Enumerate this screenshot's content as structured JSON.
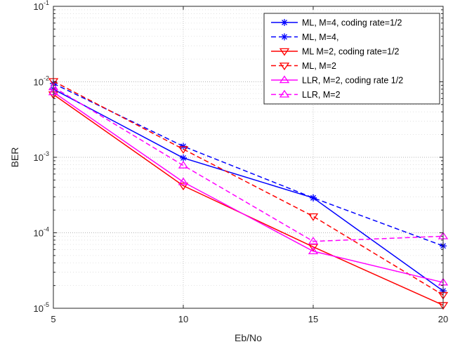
{
  "chart_data": {
    "type": "line",
    "xlabel": "Eb/No",
    "ylabel": "BER",
    "x": [
      5,
      10,
      15,
      20
    ],
    "xlim": [
      5,
      20
    ],
    "ylim": [
      1e-05,
      0.1
    ],
    "yscale": "log",
    "x_tick_labels": [
      "5",
      "10",
      "15",
      "20"
    ],
    "y_tick_labels": [
      {
        "base": "10",
        "exp": "-5"
      },
      {
        "base": "10",
        "exp": "-4"
      },
      {
        "base": "10",
        "exp": "-3"
      },
      {
        "base": "10",
        "exp": "-2"
      },
      {
        "base": "10",
        "exp": "-1"
      }
    ],
    "grid": true,
    "minor_grid": true,
    "legend_position": "top-right",
    "series": [
      {
        "name": "ML, M=4, coding rate=1/2",
        "values": [
          0.008,
          0.00098,
          0.00029,
          1.7e-05
        ],
        "color": "#0000ff",
        "dash": "solid",
        "marker": "star"
      },
      {
        "name": "ML, M=4,",
        "values": [
          0.0095,
          0.0014,
          0.00029,
          6.7e-05
        ],
        "color": "#0000ff",
        "dash": "dashed",
        "marker": "star"
      },
      {
        "name": "ML M=2, coding rate=1/2",
        "values": [
          0.0068,
          0.00042,
          6.5e-05,
          1.1e-05
        ],
        "color": "#ff0000",
        "dash": "solid",
        "marker": "triangle-down"
      },
      {
        "name": "ML, M=2",
        "values": [
          0.0102,
          0.00128,
          0.000165,
          1.5e-05
        ],
        "color": "#ff0000",
        "dash": "dashed",
        "marker": "triangle-down"
      },
      {
        "name": "LLR, M=2, coding rate 1/2",
        "values": [
          0.0073,
          0.00047,
          5.7e-05,
          2.2e-05
        ],
        "color": "#ff00ff",
        "dash": "solid",
        "marker": "triangle-up"
      },
      {
        "name": "LLR, M=2",
        "values": [
          0.0085,
          0.00078,
          7.7e-05,
          9e-05
        ],
        "color": "#ff00ff",
        "dash": "dashed",
        "marker": "triangle-up"
      }
    ]
  }
}
